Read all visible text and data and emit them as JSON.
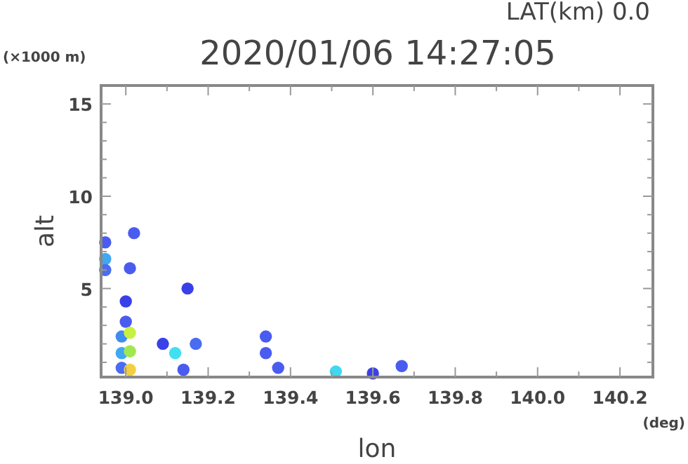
{
  "chart_data": {
    "type": "scatter",
    "title": "2020/01/06 14:27:05",
    "subtitle": "LAT(km) 0.0",
    "xlabel": "lon",
    "ylabel": "alt",
    "annotations": [
      "(×1000 m)",
      "(deg)"
    ],
    "marker": "circle",
    "grid": false,
    "xlim": [
      138.94,
      140.28
    ],
    "xticks": [
      {
        "value": 139.0,
        "label": "139.0"
      },
      {
        "value": 139.1,
        "label": null
      },
      {
        "value": 139.2,
        "label": "139.2"
      },
      {
        "value": 139.3,
        "label": null
      },
      {
        "value": 139.4,
        "label": "139.4"
      },
      {
        "value": 139.5,
        "label": null
      },
      {
        "value": 139.6,
        "label": "139.6"
      },
      {
        "value": 139.7,
        "label": null
      },
      {
        "value": 139.8,
        "label": "139.8"
      },
      {
        "value": 139.9,
        "label": null
      },
      {
        "value": 140.0,
        "label": "140.0"
      },
      {
        "value": 140.1,
        "label": null
      },
      {
        "value": 140.2,
        "label": "140.2"
      }
    ],
    "ylim": [
      0.2,
      16
    ],
    "yticks": [
      {
        "value": 1,
        "label": null
      },
      {
        "value": 2,
        "label": null
      },
      {
        "value": 3,
        "label": null
      },
      {
        "value": 4,
        "label": null
      },
      5,
      {
        "value": 6,
        "label": null
      },
      {
        "value": 7,
        "label": null
      },
      {
        "value": 8,
        "label": null
      },
      {
        "value": 9,
        "label": null
      },
      10,
      {
        "value": 11,
        "label": null
      },
      {
        "value": 12,
        "label": null
      },
      {
        "value": 13,
        "label": null
      },
      {
        "value": 14,
        "label": null
      },
      15
    ],
    "x": [
      138.95,
      138.95,
      138.95,
      139.01,
      139.02,
      139.0,
      139.0,
      138.99,
      138.99,
      138.99,
      139.01,
      139.01,
      139.01,
      139.15,
      139.09,
      139.12,
      139.17,
      139.14,
      139.34,
      139.34,
      139.37,
      139.51,
      139.6,
      139.67
    ],
    "values": [
      7.5,
      6.6,
      6.0,
      6.1,
      8.0,
      4.3,
      3.2,
      2.4,
      1.5,
      0.7,
      2.6,
      1.6,
      0.6,
      5.0,
      2.0,
      1.5,
      2.0,
      0.6,
      2.4,
      1.5,
      0.7,
      0.5,
      0.4,
      0.8
    ],
    "colors": [
      "#4a5cf0",
      "#3fa8f0",
      "#4a6cf0",
      "#4a5cf0",
      "#4a5cf0",
      "#3a40e8",
      "#4a5cf0",
      "#3f8cf0",
      "#3fa8f0",
      "#4a6cf0",
      "#c8f040",
      "#a0e850",
      "#f0d040",
      "#3a40e8",
      "#3a40e8",
      "#40e0f0",
      "#4a6cf0",
      "#4a5cf0",
      "#4a5cf0",
      "#4a5cf0",
      "#4a5cf0",
      "#40d8f0",
      "#3a40e8",
      "#4a5cf0"
    ]
  }
}
